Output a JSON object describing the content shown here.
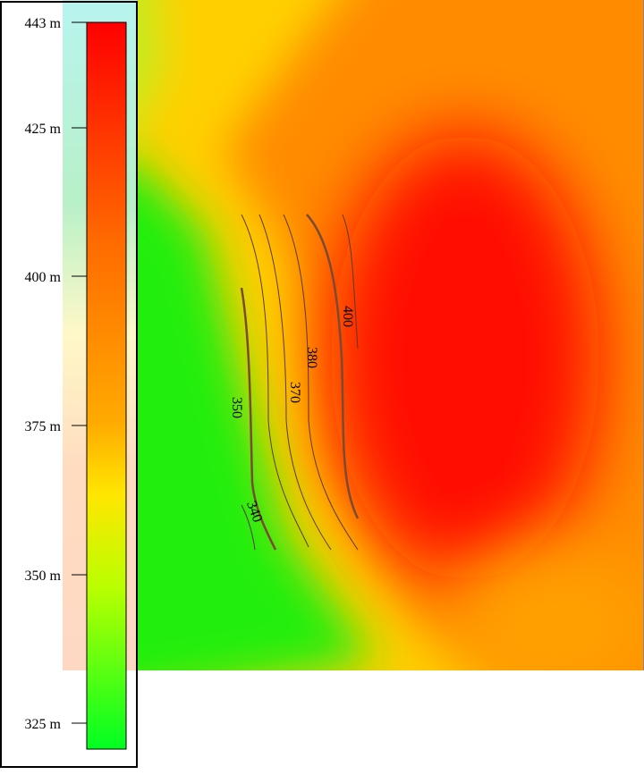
{
  "legend": {
    "ticks": [
      "443 m",
      "425 m",
      "400 m",
      "375 m",
      "350 m",
      "325 m"
    ]
  },
  "contours": {
    "labels": [
      "400",
      "380",
      "370",
      "350",
      "340"
    ]
  }
}
